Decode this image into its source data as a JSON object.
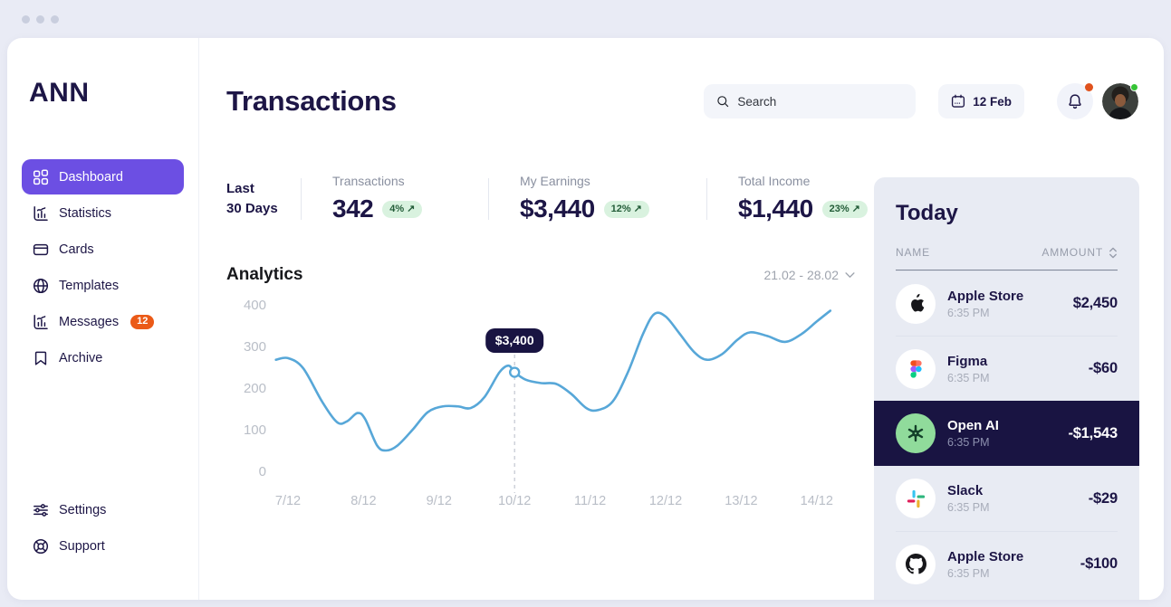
{
  "sidebar": {
    "logo": "ANN",
    "items": [
      {
        "label": "Dashboard",
        "icon": "grid-icon",
        "active": true
      },
      {
        "label": "Statistics",
        "icon": "chart-icon"
      },
      {
        "label": "Cards",
        "icon": "card-icon"
      },
      {
        "label": "Templates",
        "icon": "globe-icon"
      },
      {
        "label": "Messages",
        "icon": "chart-icon",
        "badge": "12"
      },
      {
        "label": "Archive",
        "icon": "bookmark-icon"
      }
    ],
    "footer_items": [
      {
        "label": "Settings",
        "icon": "sliders-icon"
      },
      {
        "label": "Support",
        "icon": "lifebuoy-icon"
      }
    ]
  },
  "header": {
    "title": "Transactions",
    "search_placeholder": "Search",
    "date_button": "12 Feb"
  },
  "stats": {
    "period_line1": "Last",
    "period_line2": "30 Days",
    "trend_arrow": "↗",
    "items": [
      {
        "label": "Transactions",
        "value": "342",
        "badge": "4%"
      },
      {
        "label": "My Earnings",
        "value": "$3,440",
        "badge": "12%"
      },
      {
        "label": "Total Income",
        "value": "$1,440",
        "badge": "23%"
      }
    ]
  },
  "analytics": {
    "title": "Analytics",
    "range": "21.02 - 28.02"
  },
  "chart_data": {
    "type": "line",
    "title": "Analytics",
    "x_tick_labels": [
      "7/12",
      "8/12",
      "9/12",
      "10/12",
      "11/12",
      "12/12",
      "13/12",
      "14/12"
    ],
    "y_ticks": [
      0,
      100,
      200,
      300,
      400
    ],
    "ylim": [
      0,
      430
    ],
    "grid": false,
    "line_color": "#57A7D8",
    "points": [
      [
        6.84,
        268
      ],
      [
        7.0,
        272
      ],
      [
        7.2,
        248
      ],
      [
        7.45,
        168
      ],
      [
        7.65,
        118
      ],
      [
        7.78,
        120
      ],
      [
        7.92,
        140
      ],
      [
        8.02,
        126
      ],
      [
        8.18,
        62
      ],
      [
        8.3,
        50
      ],
      [
        8.45,
        62
      ],
      [
        8.65,
        100
      ],
      [
        8.85,
        142
      ],
      [
        9.05,
        156
      ],
      [
        9.25,
        156
      ],
      [
        9.42,
        152
      ],
      [
        9.6,
        178
      ],
      [
        9.8,
        238
      ],
      [
        9.92,
        254
      ],
      [
        10.0,
        238
      ],
      [
        10.15,
        220
      ],
      [
        10.35,
        212
      ],
      [
        10.55,
        210
      ],
      [
        10.75,
        186
      ],
      [
        10.95,
        152
      ],
      [
        11.1,
        147
      ],
      [
        11.3,
        168
      ],
      [
        11.5,
        238
      ],
      [
        11.7,
        330
      ],
      [
        11.85,
        378
      ],
      [
        12.0,
        372
      ],
      [
        12.18,
        332
      ],
      [
        12.38,
        286
      ],
      [
        12.55,
        268
      ],
      [
        12.75,
        282
      ],
      [
        12.95,
        316
      ],
      [
        13.12,
        334
      ],
      [
        13.35,
        325
      ],
      [
        13.58,
        311
      ],
      [
        13.8,
        330
      ],
      [
        14.0,
        360
      ],
      [
        14.18,
        386
      ]
    ],
    "marker": {
      "x": 10,
      "value": 238,
      "label": "$3,400"
    }
  },
  "today_panel": {
    "title": "Today",
    "columns": [
      "NAME",
      "AMMOUNT"
    ],
    "rows": [
      {
        "name": "Apple Store",
        "time": "6:35 PM",
        "amount": "$2,450",
        "icon": "apple-icon",
        "highlight": false
      },
      {
        "name": "Figma",
        "time": "6:35 PM",
        "amount": "-$60",
        "icon": "figma-icon",
        "highlight": false
      },
      {
        "name": "Open AI",
        "time": "6:35 PM",
        "amount": "-$1,543",
        "icon": "openai-icon",
        "highlight": true
      },
      {
        "name": "Slack",
        "time": "6:35 PM",
        "amount": "-$29",
        "icon": "slack-icon",
        "highlight": false
      },
      {
        "name": "Apple Store",
        "time": "6:35 PM",
        "amount": "-$100",
        "icon": "github-icon",
        "highlight": false
      }
    ]
  },
  "colors": {
    "accent_purple": "#6C4FE3",
    "highlight_navy": "#191442",
    "chart_line_blue": "#57A7D8",
    "badge_green_bg": "#D9F2DF",
    "badge_orange": "#EB5A17",
    "panel_bg": "#E8EBF3",
    "page_bg": "#E9EBF5"
  }
}
